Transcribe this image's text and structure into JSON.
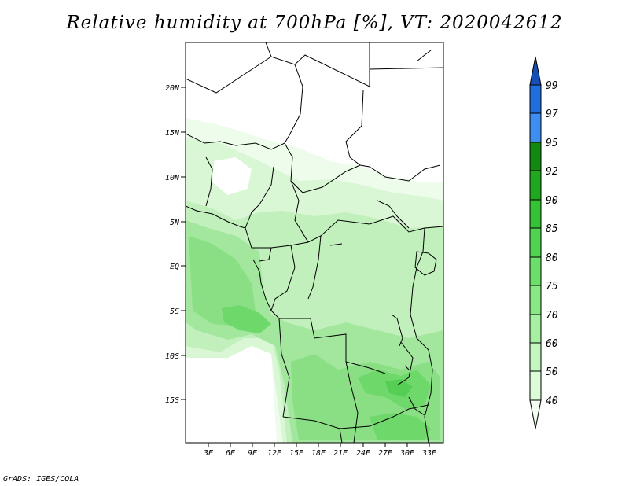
{
  "title": "Relative humidity at 700hPa [%], VT: 2020042612",
  "credit": "GrADS: IGES/COLA",
  "map": {
    "lat_labels": [
      "20N",
      "15N",
      "10N",
      "5N",
      "EQ",
      "5S",
      "10S",
      "15S"
    ],
    "lon_labels": [
      "3E",
      "6E",
      "9E",
      "12E",
      "15E",
      "18E",
      "21E",
      "24E",
      "27E",
      "30E",
      "33E"
    ]
  },
  "colorbar": {
    "levels": [
      "40",
      "50",
      "60",
      "70",
      "75",
      "80",
      "85",
      "90",
      "92",
      "95",
      "97",
      "99"
    ],
    "colors": [
      "#f2fff0",
      "#dcfcd8",
      "#c4f7c0",
      "#a6f0a2",
      "#88e884",
      "#6cdf6a",
      "#50d450",
      "#34c334",
      "#1fa71f",
      "#128a12",
      "#3d8ef0",
      "#1e6fdc",
      "#1550b8"
    ]
  }
}
